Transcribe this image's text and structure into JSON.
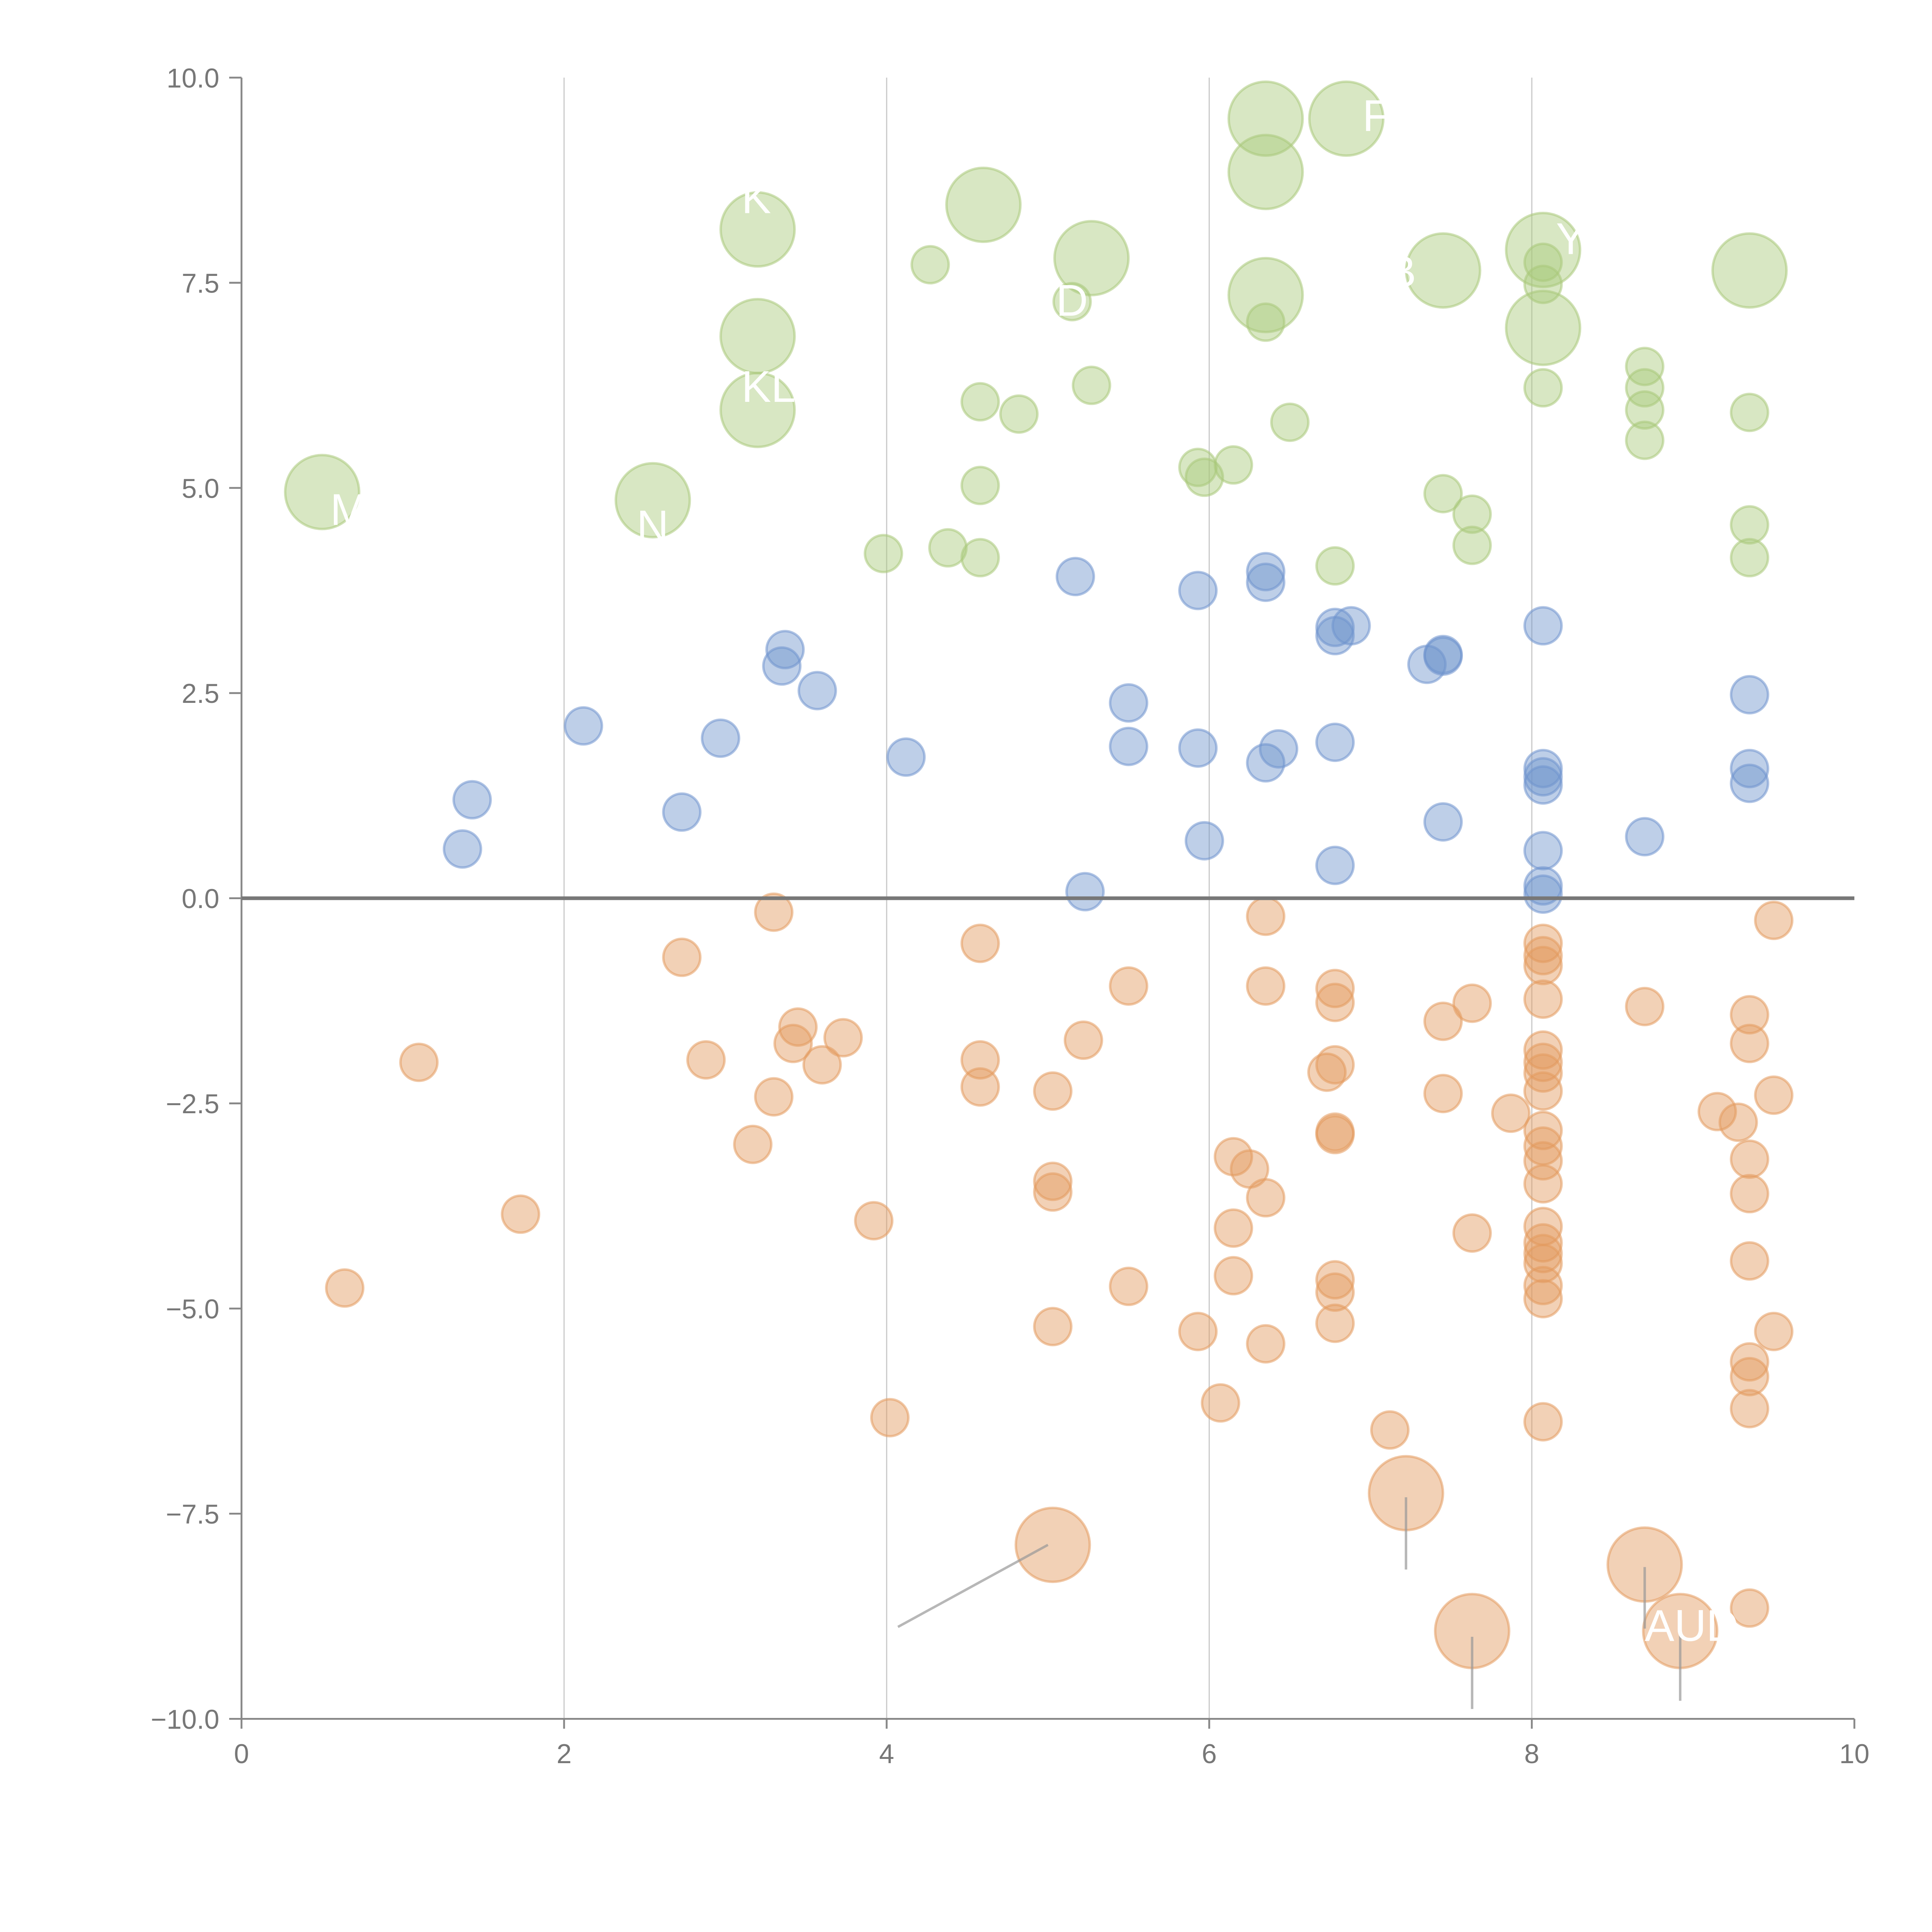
{
  "chart_data": {
    "type": "scatter",
    "title": "",
    "xlabel": "",
    "ylabel": "",
    "xlim": [
      0,
      10
    ],
    "ylim": [
      -10,
      10
    ],
    "x_ticks": [
      "0",
      "2",
      "4",
      "6",
      "8",
      "10"
    ],
    "y_ticks": [
      "10.0",
      "7.5",
      "5.0",
      "2.5",
      "0.0",
      "−2.5",
      "−5.0",
      "−7.5",
      "−10.0"
    ],
    "grid": "vertical",
    "zero_line": true,
    "colors": {
      "green": "#a9c97a",
      "blue": "#6f94cd",
      "orange": "#e39a5e"
    },
    "series": [
      {
        "name": "green",
        "points": [
          [
            0.5,
            4.95,
            "L"
          ],
          [
            2.55,
            4.85,
            "L"
          ],
          [
            3.2,
            8.15,
            "L"
          ],
          [
            3.2,
            6.85,
            "L"
          ],
          [
            3.2,
            5.95,
            "L"
          ],
          [
            4.6,
            8.45,
            "L"
          ],
          [
            5.27,
            7.8,
            "L"
          ],
          [
            6.35,
            9.5,
            "L"
          ],
          [
            6.85,
            9.5,
            "L"
          ],
          [
            6.35,
            8.85,
            "L"
          ],
          [
            6.35,
            7.35,
            "L"
          ],
          [
            7.45,
            7.65,
            "L"
          ],
          [
            8.07,
            7.9,
            "L"
          ],
          [
            8.07,
            6.95,
            "L"
          ],
          [
            9.35,
            7.65,
            "L"
          ],
          [
            4.27,
            7.72,
            "s"
          ],
          [
            5.15,
            7.27,
            "s"
          ],
          [
            6.35,
            7.02,
            "s"
          ],
          [
            8.07,
            7.75,
            "s"
          ],
          [
            8.07,
            7.48,
            "s"
          ],
          [
            8.07,
            6.22,
            "s"
          ],
          [
            4.58,
            6.05,
            "s"
          ],
          [
            4.82,
            5.9,
            "s"
          ],
          [
            5.27,
            6.25,
            "s"
          ],
          [
            6.5,
            5.8,
            "s"
          ],
          [
            5.93,
            5.25,
            "s"
          ],
          [
            5.97,
            5.13,
            "s"
          ],
          [
            6.15,
            5.28,
            "s"
          ],
          [
            4.58,
            5.03,
            "s"
          ],
          [
            3.98,
            4.2,
            "s"
          ],
          [
            4.38,
            4.27,
            "s"
          ],
          [
            4.58,
            4.15,
            "s"
          ],
          [
            6.78,
            4.05,
            "s"
          ],
          [
            7.45,
            4.93,
            "s"
          ],
          [
            7.63,
            4.68,
            "s"
          ],
          [
            7.63,
            4.3,
            "s"
          ],
          [
            8.7,
            6.48,
            "s"
          ],
          [
            8.7,
            6.22,
            "s"
          ],
          [
            8.7,
            5.95,
            "s"
          ],
          [
            8.7,
            5.58,
            "s"
          ],
          [
            9.35,
            5.92,
            "s"
          ],
          [
            9.35,
            4.55,
            "s"
          ],
          [
            9.35,
            4.15,
            "s"
          ]
        ]
      },
      {
        "name": "blue",
        "points": [
          [
            1.37,
            0.6,
            "s"
          ],
          [
            1.43,
            1.2,
            "s"
          ],
          [
            2.12,
            2.1,
            "s"
          ],
          [
            2.73,
            1.05,
            "s"
          ],
          [
            2.97,
            1.95,
            "s"
          ],
          [
            3.37,
            3.03,
            "s"
          ],
          [
            3.35,
            2.83,
            "s"
          ],
          [
            3.57,
            2.53,
            "s"
          ],
          [
            4.12,
            1.72,
            "s"
          ],
          [
            5.17,
            3.92,
            "s"
          ],
          [
            5.23,
            0.08,
            "s"
          ],
          [
            5.5,
            2.38,
            "s"
          ],
          [
            5.5,
            1.85,
            "s"
          ],
          [
            5.93,
            3.75,
            "s"
          ],
          [
            5.93,
            1.83,
            "s"
          ],
          [
            5.97,
            0.7,
            "s"
          ],
          [
            6.35,
            3.98,
            "s"
          ],
          [
            6.35,
            3.85,
            "s"
          ],
          [
            6.35,
            1.65,
            "s"
          ],
          [
            6.43,
            1.82,
            "s"
          ],
          [
            6.78,
            3.3,
            "s"
          ],
          [
            6.78,
            3.2,
            "s"
          ],
          [
            6.88,
            3.32,
            "s"
          ],
          [
            6.78,
            1.9,
            "s"
          ],
          [
            6.78,
            0.4,
            "s"
          ],
          [
            7.35,
            2.85,
            "s"
          ],
          [
            7.45,
            2.97,
            "s"
          ],
          [
            7.45,
            2.95,
            "s"
          ],
          [
            7.45,
            0.93,
            "s"
          ],
          [
            8.07,
            3.32,
            "s"
          ],
          [
            8.07,
            1.58,
            "s"
          ],
          [
            8.07,
            1.48,
            "s"
          ],
          [
            8.07,
            1.38,
            "s"
          ],
          [
            8.07,
            0.58,
            "s"
          ],
          [
            8.07,
            0.15,
            "s"
          ],
          [
            8.07,
            0.05,
            "s"
          ],
          [
            8.7,
            0.75,
            "s"
          ],
          [
            9.35,
            2.48,
            "s"
          ],
          [
            9.35,
            1.58,
            "s"
          ],
          [
            9.35,
            1.4,
            "s"
          ]
        ]
      },
      {
        "name": "orange",
        "points": [
          [
            0.64,
            -4.75,
            "s"
          ],
          [
            1.1,
            -2.0,
            "s"
          ],
          [
            1.73,
            -3.85,
            "s"
          ],
          [
            2.73,
            -0.72,
            "s"
          ],
          [
            2.88,
            -1.97,
            "s"
          ],
          [
            3.17,
            -3.0,
            "s"
          ],
          [
            3.3,
            -0.17,
            "s"
          ],
          [
            3.3,
            -2.42,
            "s"
          ],
          [
            3.45,
            -1.57,
            "s"
          ],
          [
            3.42,
            -1.77,
            "s"
          ],
          [
            3.6,
            -2.03,
            "s"
          ],
          [
            3.73,
            -1.7,
            "s"
          ],
          [
            3.92,
            -3.93,
            "s"
          ],
          [
            4.02,
            -6.33,
            "s"
          ],
          [
            4.58,
            -0.55,
            "s"
          ],
          [
            4.58,
            -1.97,
            "s"
          ],
          [
            4.58,
            -2.3,
            "s"
          ],
          [
            5.03,
            -2.35,
            "s"
          ],
          [
            5.03,
            -3.45,
            "s"
          ],
          [
            5.03,
            -3.58,
            "s"
          ],
          [
            5.03,
            -5.22,
            "s"
          ],
          [
            5.22,
            -1.73,
            "s"
          ],
          [
            5.5,
            -1.07,
            "s"
          ],
          [
            5.5,
            -4.73,
            "s"
          ],
          [
            5.93,
            -5.28,
            "s"
          ],
          [
            6.07,
            -6.15,
            "s"
          ],
          [
            6.15,
            -3.15,
            "s"
          ],
          [
            6.15,
            -4.02,
            "s"
          ],
          [
            6.15,
            -4.6,
            "s"
          ],
          [
            6.25,
            -3.3,
            "s"
          ],
          [
            6.35,
            -0.22,
            "s"
          ],
          [
            6.35,
            -1.07,
            "s"
          ],
          [
            6.35,
            -3.65,
            "s"
          ],
          [
            6.35,
            -5.43,
            "s"
          ],
          [
            6.78,
            -1.1,
            "s"
          ],
          [
            6.78,
            -1.27,
            "s"
          ],
          [
            6.73,
            -2.12,
            "s"
          ],
          [
            6.78,
            -2.03,
            "s"
          ],
          [
            6.78,
            -2.88,
            "s"
          ],
          [
            6.78,
            -2.85,
            "s"
          ],
          [
            6.78,
            -4.65,
            "s"
          ],
          [
            6.78,
            -4.8,
            "s"
          ],
          [
            6.78,
            -5.18,
            "s"
          ],
          [
            7.12,
            -6.48,
            "s"
          ],
          [
            7.45,
            -1.5,
            "s"
          ],
          [
            7.45,
            -2.38,
            "s"
          ],
          [
            7.63,
            -1.28,
            "s"
          ],
          [
            7.63,
            -4.08,
            "s"
          ],
          [
            7.87,
            -2.62,
            "s"
          ],
          [
            8.07,
            -0.55,
            "s"
          ],
          [
            8.07,
            -0.7,
            "s"
          ],
          [
            8.07,
            -0.82,
            "s"
          ],
          [
            8.07,
            -1.23,
            "s"
          ],
          [
            8.07,
            -1.85,
            "s"
          ],
          [
            8.07,
            -2.0,
            "s"
          ],
          [
            8.07,
            -2.13,
            "s"
          ],
          [
            8.07,
            -2.35,
            "s"
          ],
          [
            8.07,
            -2.83,
            "s"
          ],
          [
            8.07,
            -3.02,
            "s"
          ],
          [
            8.07,
            -3.2,
            "s"
          ],
          [
            8.07,
            -3.48,
            "s"
          ],
          [
            8.07,
            -4.0,
            "s"
          ],
          [
            8.07,
            -4.2,
            "s"
          ],
          [
            8.07,
            -4.33,
            "s"
          ],
          [
            8.07,
            -4.45,
            "s"
          ],
          [
            8.07,
            -4.72,
            "s"
          ],
          [
            8.07,
            -4.88,
            "s"
          ],
          [
            8.07,
            -6.38,
            "s"
          ],
          [
            8.7,
            -1.32,
            "s"
          ],
          [
            9.15,
            -2.6,
            "s"
          ],
          [
            9.28,
            -2.73,
            "s"
          ],
          [
            9.35,
            -1.42,
            "s"
          ],
          [
            9.35,
            -1.77,
            "s"
          ],
          [
            9.35,
            -3.18,
            "s"
          ],
          [
            9.35,
            -3.6,
            "s"
          ],
          [
            9.35,
            -4.42,
            "s"
          ],
          [
            9.35,
            -5.65,
            "s"
          ],
          [
            9.35,
            -5.83,
            "s"
          ],
          [
            9.35,
            -6.22,
            "s"
          ],
          [
            9.35,
            -8.65,
            "s"
          ],
          [
            9.5,
            -0.27,
            "s"
          ],
          [
            9.5,
            -2.4,
            "s"
          ],
          [
            9.5,
            -5.28,
            "s"
          ],
          [
            5.03,
            -7.88,
            "L"
          ],
          [
            7.22,
            -7.25,
            "L"
          ],
          [
            7.63,
            -8.93,
            "L"
          ],
          [
            8.7,
            -8.12,
            "L"
          ],
          [
            8.92,
            -8.93,
            "L"
          ]
        ]
      }
    ],
    "annotations": [
      {
        "text": "M",
        "x": 0.55,
        "y": 4.55
      },
      {
        "text": "N",
        "x": 2.45,
        "y": 4.35
      },
      {
        "text": "K",
        "x": 3.1,
        "y": 8.35
      },
      {
        "text": "KL",
        "x": 3.1,
        "y": 6.05
      },
      {
        "text": "D",
        "x": 5.05,
        "y": 7.1
      },
      {
        "text": "F",
        "x": 6.95,
        "y": 9.35
      },
      {
        "text": "B",
        "x": 7.1,
        "y": 7.45
      },
      {
        "text": "Y",
        "x": 8.15,
        "y": 7.85
      },
      {
        "text": "AUD",
        "x": 8.7,
        "y": -9.05
      }
    ],
    "leaders": [
      [
        4.07,
        -8.88,
        5.0,
        -7.88
      ],
      [
        7.22,
        -7.3,
        7.22,
        -8.18
      ],
      [
        7.63,
        -9.0,
        7.63,
        -9.88
      ],
      [
        8.7,
        -8.15,
        8.7,
        -8.9
      ],
      [
        8.92,
        -8.95,
        8.92,
        -9.78
      ]
    ]
  }
}
